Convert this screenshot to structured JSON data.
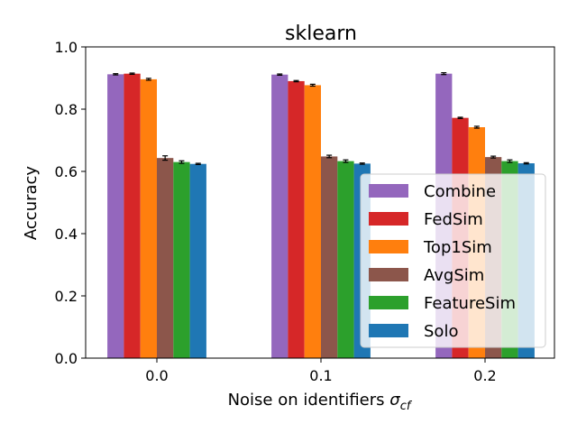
{
  "chart_data": {
    "type": "bar",
    "title": "sklearn",
    "xlabel": "Noise on identifiers ",
    "xlabel_symbol": "σ",
    "xlabel_subscript": "cf",
    "ylabel": "Accuracy",
    "categories": [
      "0.0",
      "0.1",
      "0.2"
    ],
    "ylim": [
      0.0,
      1.0
    ],
    "yticks": [
      "0.0",
      "0.2",
      "0.4",
      "0.6",
      "0.8",
      "1.0"
    ],
    "grid": false,
    "legend_position": "right",
    "series": [
      {
        "name": "Combine",
        "color": "#9467bd",
        "values": [
          0.912,
          0.911,
          0.914
        ],
        "errors": [
          0.002,
          0.002,
          0.003
        ]
      },
      {
        "name": "FedSim",
        "color": "#d62728",
        "values": [
          0.914,
          0.89,
          0.772
        ],
        "errors": [
          0.002,
          0.002,
          0.002
        ]
      },
      {
        "name": "Top1Sim",
        "color": "#ff7f0e",
        "values": [
          0.896,
          0.877,
          0.742
        ],
        "errors": [
          0.003,
          0.003,
          0.003
        ]
      },
      {
        "name": "AvgSim",
        "color": "#8c564b",
        "values": [
          0.643,
          0.648,
          0.646
        ],
        "errors": [
          0.007,
          0.004,
          0.003
        ]
      },
      {
        "name": "FeatureSim",
        "color": "#2ca02c",
        "values": [
          0.63,
          0.633,
          0.633
        ],
        "errors": [
          0.004,
          0.004,
          0.004
        ]
      },
      {
        "name": "Solo",
        "color": "#1f77b4",
        "values": [
          0.624,
          0.625,
          0.626
        ],
        "errors": [
          0.002,
          0.002,
          0.002
        ]
      }
    ]
  }
}
